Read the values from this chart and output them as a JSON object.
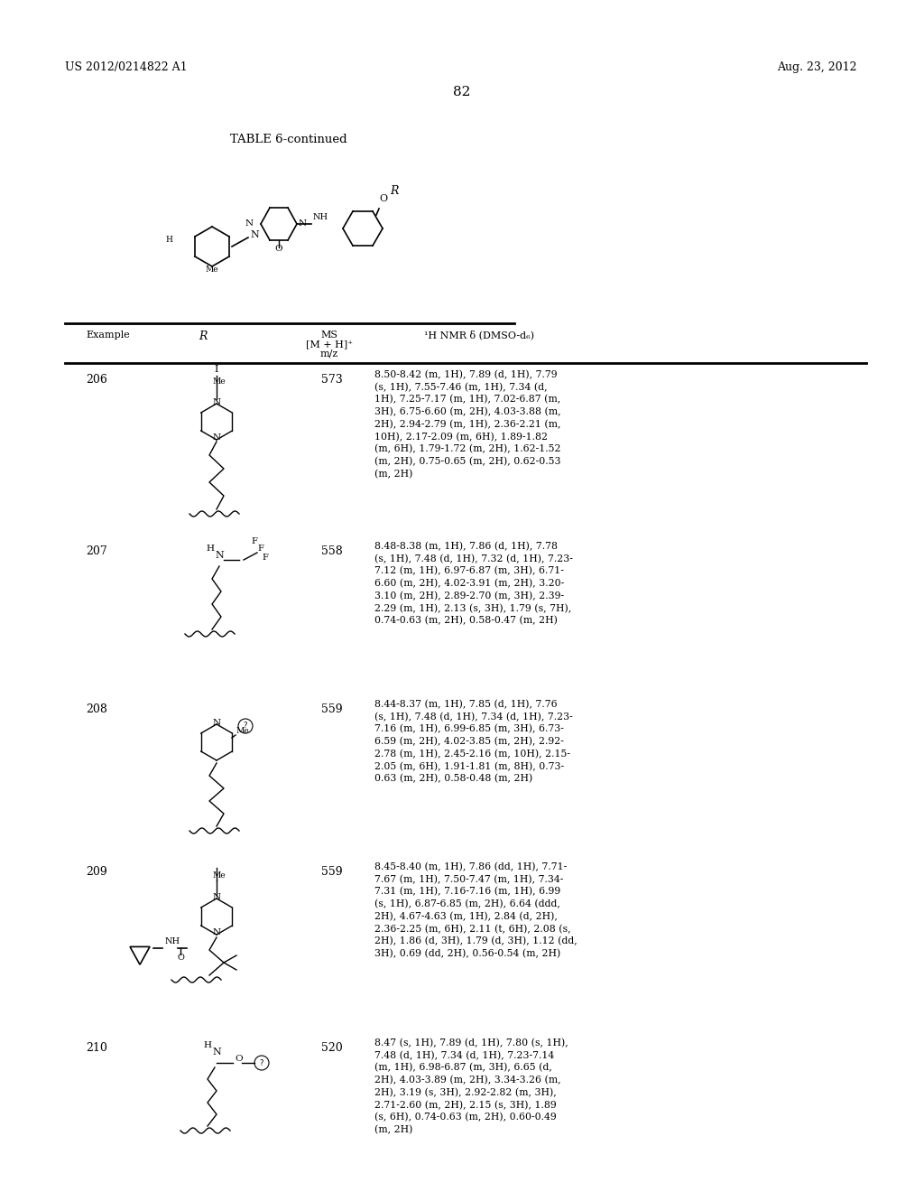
{
  "background_color": "#ffffff",
  "page_number": "82",
  "patent_left": "US 2012/0214822 A1",
  "patent_right": "Aug. 23, 2012",
  "table_title": "TABLE 6-continued",
  "column_headers": {
    "example": "Example",
    "r": "R",
    "ms": "MS\n[M + H]⁺\nm/z",
    "nmr": "¹H NMR δ (DMSO-d₆)"
  },
  "rows": [
    {
      "example": "206",
      "ms": "573",
      "nmr": "8.50-8.42 (m, 1H), 7.89 (d, 1H), 7.79\n(s, 1H), 7.55-7.46 (m, 1H), 7.34 (d,\n1H), 7.25-7.17 (m, 1H), 7.02-6.87 (m,\n3H), 6.75-6.60 (m, 2H), 4.03-3.88 (m,\n2H), 2.94-2.79 (m, 1H), 2.36-2.21 (m,\n10H), 2.17-2.09 (m, 6H), 1.89-1.82\n(m, 6H), 1.79-1.72 (m, 2H), 1.62-1.52\n(m, 2H), 0.75-0.65 (m, 2H), 0.62-0.53\n(m, 2H)"
    },
    {
      "example": "207",
      "ms": "558",
      "nmr": "8.48-8.38 (m, 1H), 7.86 (d, 1H), 7.78\n(s, 1H), 7.48 (d, 1H), 7.32 (d, 1H), 7.23-\n7.12 (m, 1H), 6.97-6.87 (m, 3H), 6.71-\n6.60 (m, 2H), 4.02-3.91 (m, 2H), 3.20-\n3.10 (m, 2H), 2.89-2.70 (m, 3H), 2.39-\n2.29 (m, 1H), 2.13 (s, 3H), 1.79 (s, 7H),\n0.74-0.63 (m, 2H), 0.58-0.47 (m, 2H)"
    },
    {
      "example": "208",
      "ms": "559",
      "nmr": "8.44-8.37 (m, 1H), 7.85 (d, 1H), 7.76\n(s, 1H), 7.48 (d, 1H), 7.34 (d, 1H), 7.23-\n7.16 (m, 1H), 6.99-6.85 (m, 3H), 6.73-\n6.59 (m, 2H), 4.02-3.85 (m, 2H), 2.92-\n2.78 (m, 1H), 2.45-2.16 (m, 10H), 2.15-\n2.05 (m, 6H), 1.91-1.81 (m, 8H), 0.73-\n0.63 (m, 2H), 0.58-0.48 (m, 2H)"
    },
    {
      "example": "209",
      "ms": "559",
      "nmr": "8.45-8.40 (m, 1H), 7.86 (dd, 1H), 7.71-\n7.67 (m, 1H), 7.50-7.47 (m, 1H), 7.34-\n7.31 (m, 1H), 7.16-7.16 (m, 1H), 6.99\n(s, 1H), 6.87-6.85 (m, 2H), 6.64 (ddd,\n2H), 4.67-4.63 (m, 1H), 2.84 (d, 2H),\n2.36-2.25 (m, 6H), 2.11 (t, 6H), 2.08 (s,\n2H), 1.86 (d, 3H), 1.79 (d, 3H), 1.12 (dd,\n3H), 0.69 (dd, 2H), 0.56-0.54 (m, 2H)"
    },
    {
      "example": "210",
      "ms": "520",
      "nmr": "8.47 (s, 1H), 7.89 (d, 1H), 7.80 (s, 1H),\n7.48 (d, 1H), 7.34 (d, 1H), 7.23-7.14\n(m, 1H), 6.98-6.87 (m, 3H), 6.65 (d,\n2H), 4.03-3.89 (m, 2H), 3.34-3.26 (m,\n2H), 3.19 (s, 3H), 2.92-2.82 (m, 3H),\n2.71-2.60 (m, 2H), 2.15 (s, 3H), 1.89\n(s, 6H), 0.74-0.63 (m, 2H), 0.60-0.49\n(m, 2H)"
    }
  ]
}
